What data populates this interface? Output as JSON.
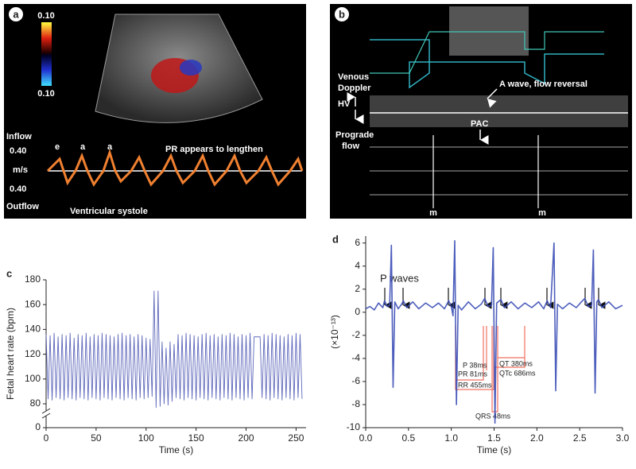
{
  "panel_a": {
    "label": "a",
    "scale_top": "0.10",
    "scale_bottom": "0.10",
    "inflow": "Inflow",
    "inflow_speed": "0.40",
    "unit": "m/s",
    "outflow_speed": "0.40",
    "outflow": "Outflow",
    "systole": "Ventricular systole",
    "pr_note": "PR appears to lengthen",
    "wave_labels": [
      "e",
      "a",
      "a"
    ]
  },
  "panel_b": {
    "label": "b",
    "venous": "Venous",
    "doppler": "Doppler",
    "hv": "HV",
    "prograde": "Prograde",
    "flow": "flow",
    "a_wave": "A wave, flow reversal",
    "pac": "PAC",
    "m_labels": [
      "m",
      "m"
    ]
  },
  "chart_data": [
    {
      "type": "line",
      "panel_label": "c",
      "xlabel": "Time (s)",
      "ylabel": "Fetal heart rate (bpm)",
      "color": "#4b57b3",
      "axis_break": true,
      "xlim": [
        0,
        260
      ],
      "xticks": [
        0,
        50,
        100,
        150,
        200,
        250
      ],
      "ylim": [
        0,
        180
      ],
      "yticks": [
        0,
        80,
        100,
        120,
        140,
        160,
        180
      ],
      "x": [
        0,
        2,
        4,
        6,
        8,
        10,
        12,
        14,
        16,
        18,
        20,
        22,
        24,
        26,
        28,
        30,
        32,
        34,
        36,
        38,
        40,
        42,
        44,
        46,
        48,
        50,
        52,
        54,
        56,
        58,
        60,
        62,
        64,
        66,
        68,
        70,
        72,
        74,
        76,
        78,
        80,
        82,
        84,
        86,
        88,
        90,
        92,
        94,
        96,
        98,
        100,
        102,
        104,
        106,
        108,
        110,
        112,
        114,
        116,
        118,
        120,
        122,
        124,
        126,
        128,
        130,
        132,
        134,
        136,
        138,
        140,
        142,
        144,
        146,
        148,
        150,
        152,
        154,
        156,
        158,
        160,
        162,
        164,
        166,
        168,
        170,
        172,
        174,
        176,
        178,
        180,
        182,
        184,
        186,
        188,
        190,
        192,
        194,
        196,
        198,
        200,
        202,
        204,
        206,
        208,
        210,
        212,
        214,
        216,
        218,
        220,
        222,
        224,
        226,
        228,
        230,
        232,
        234,
        236,
        238,
        240,
        242,
        244,
        246,
        248,
        250,
        252,
        254,
        256
      ],
      "values": [
        136,
        84,
        135,
        83,
        137,
        85,
        134,
        84,
        136,
        83,
        135,
        85,
        137,
        84,
        133,
        83,
        136,
        85,
        135,
        84,
        137,
        83,
        134,
        85,
        136,
        84,
        135,
        83,
        137,
        85,
        136,
        84,
        135,
        83,
        134,
        85,
        136,
        84,
        137,
        83,
        135,
        85,
        136,
        84,
        134,
        83,
        136,
        85,
        135,
        84,
        133,
        85,
        132,
        86,
        171,
        77,
        171,
        78,
        130,
        80,
        125,
        79,
        130,
        82,
        128,
        85,
        136,
        84,
        135,
        83,
        137,
        85,
        136,
        84,
        135,
        83,
        134,
        85,
        136,
        84,
        137,
        83,
        135,
        85,
        136,
        84,
        134,
        83,
        136,
        85,
        135,
        84,
        137,
        83,
        136,
        85,
        134,
        84,
        136,
        83,
        135,
        85,
        137,
        84,
        134,
        134,
        134,
        134,
        85,
        136,
        84,
        135,
        83,
        137,
        85,
        136,
        84,
        135,
        83,
        134,
        85,
        136,
        84,
        135,
        83,
        137,
        85,
        136,
        84
      ]
    },
    {
      "type": "line",
      "panel_label": "d",
      "xlabel": "Time (s)",
      "ylabel": "(×10⁻¹³)",
      "color": "#3a4db5",
      "xlim": [
        0,
        3
      ],
      "xticks": [
        {
          "value": 0,
          "label": "0.0"
        },
        0.5,
        {
          "value": 1,
          "label": "1.0"
        },
        1.5,
        {
          "value": 2,
          "label": "2.0"
        },
        2.5,
        {
          "value": 3,
          "label": "3.0"
        }
      ],
      "ylim": [
        -10,
        6.6
      ],
      "yticks": [
        -10,
        -8,
        -6,
        -4,
        -2,
        0,
        2,
        4,
        6
      ],
      "x": [
        0,
        0.05,
        0.1,
        0.15,
        0.2,
        0.22,
        0.25,
        0.28,
        0.3,
        0.32,
        0.34,
        0.38,
        0.42,
        0.44,
        0.48,
        0.55,
        0.62,
        0.7,
        0.78,
        0.85,
        0.92,
        0.97,
        1.0,
        1.02,
        1.04,
        1.06,
        1.08,
        1.12,
        1.2,
        1.28,
        1.35,
        1.39,
        1.43,
        1.47,
        1.49,
        1.51,
        1.53,
        1.58,
        1.62,
        1.7,
        1.78,
        1.86,
        1.94,
        2.02,
        2.08,
        2.12,
        2.16,
        2.2,
        2.22,
        2.24,
        2.3,
        2.38,
        2.46,
        2.52,
        2.56,
        2.6,
        2.64,
        2.66,
        2.68,
        2.7,
        2.72,
        2.76,
        2.84,
        2.92,
        3.0
      ],
      "values": [
        0.3,
        0.5,
        0.2,
        0.8,
        0.4,
        1.0,
        0.5,
        0.6,
        5.8,
        -6.5,
        0.9,
        0.3,
        0.7,
        1.0,
        0.4,
        0.9,
        0.3,
        0.8,
        0.4,
        0.8,
        0.3,
        1.0,
        0.5,
        -0.3,
        6.2,
        -8.0,
        0.6,
        0.2,
        0.9,
        0.3,
        0.7,
        1.2,
        0.5,
        0.6,
        5.6,
        -9.6,
        0.8,
        1.1,
        0.4,
        0.9,
        0.3,
        0.8,
        0.4,
        0.9,
        0.3,
        1.0,
        0.4,
        6.0,
        -6.8,
        0.7,
        0.3,
        0.8,
        0.4,
        0.9,
        1.2,
        0.5,
        0.6,
        5.4,
        -7.0,
        0.9,
        1.1,
        0.4,
        0.9,
        0.3,
        0.6
      ],
      "p_waves": "P waves",
      "intervals": [
        "P 38ms",
        "PR 81ms",
        "RR 455ms",
        "QT 380ms",
        "QTc 686ms",
        "QRS 48ms"
      ]
    }
  ]
}
